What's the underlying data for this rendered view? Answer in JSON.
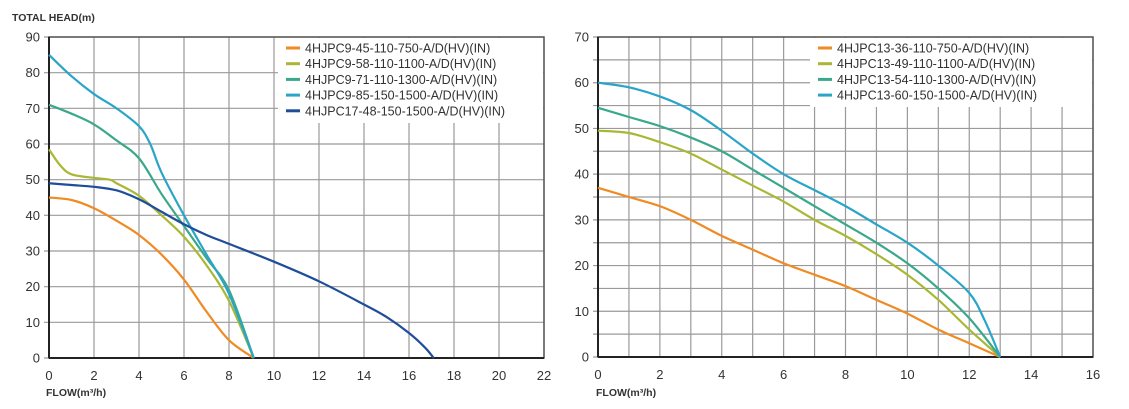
{
  "chart_data": [
    {
      "type": "line",
      "ylabel": "TOTAL HEAD(m)",
      "xlabel": "FLOW(m³/h)",
      "xlim": [
        0,
        22
      ],
      "ylim": [
        0,
        90
      ],
      "xticks": [
        0,
        2,
        4,
        6,
        8,
        10,
        12,
        14,
        16,
        18,
        20,
        22
      ],
      "yticks": [
        0,
        10,
        20,
        30,
        40,
        50,
        60,
        70,
        80,
        90
      ],
      "grid": true,
      "legend_position": "top-right",
      "series": [
        {
          "name": "4HJPC9-45-110-750-A/D(HV)(IN)",
          "color": "#f08a24",
          "x": [
            0,
            1,
            2,
            3,
            4,
            5,
            6,
            7,
            8,
            9.1
          ],
          "y": [
            45,
            44.3,
            42,
            38.5,
            34.5,
            29,
            22,
            13,
            5,
            0
          ]
        },
        {
          "name": "4HJPC9-58-110-1100-A/D(HV)(IN)",
          "color": "#a9b834",
          "x": [
            0,
            0.5,
            1,
            2,
            2.7,
            3,
            4,
            5,
            6,
            7,
            8,
            9.1
          ],
          "y": [
            58.5,
            54,
            51.5,
            50.5,
            50,
            49,
            45.5,
            40,
            34,
            26,
            16,
            0
          ]
        },
        {
          "name": "4HJPC9-71-110-1300-A/D(HV)(IN)",
          "color": "#3aa88a",
          "x": [
            0,
            1,
            2,
            3,
            4,
            5,
            6,
            7,
            8,
            9.1
          ],
          "y": [
            71,
            68.5,
            65.5,
            61,
            56,
            46,
            37,
            28,
            19,
            0
          ]
        },
        {
          "name": "4HJPC9-85-150-1500-A/D(HV)(IN)",
          "color": "#2aa5c8",
          "x": [
            0,
            1,
            2,
            3,
            4,
            4.5,
            5,
            6,
            7,
            8,
            9.1
          ],
          "y": [
            85,
            79,
            74,
            70,
            65,
            60,
            52,
            40,
            29,
            18,
            0
          ]
        },
        {
          "name": "4HJPC17-48-150-1500-A/D(HV)(IN)",
          "color": "#1f4d9a",
          "x": [
            0,
            1,
            2,
            3,
            4,
            5,
            6,
            7,
            8,
            10,
            12,
            14,
            15,
            16,
            16.7,
            17.1
          ],
          "y": [
            49,
            48.5,
            48,
            47,
            44.5,
            41,
            37.5,
            34.5,
            32,
            27,
            21.5,
            15,
            11.5,
            7,
            3,
            0
          ]
        }
      ]
    },
    {
      "type": "line",
      "xlabel": "FLOW(m³/h)",
      "xlim": [
        0,
        16
      ],
      "ylim": [
        0,
        70
      ],
      "xticks": [
        0,
        2,
        4,
        6,
        8,
        10,
        12,
        14,
        16
      ],
      "yticks": [
        0,
        10,
        20,
        30,
        40,
        50,
        60,
        70
      ],
      "grid": true,
      "legend_position": "top-right",
      "series": [
        {
          "name": "4HJPC13-36-110-750-A/D(HV)(IN)",
          "color": "#f08a24",
          "x": [
            0,
            1,
            2,
            3,
            4,
            5,
            6,
            7,
            8,
            9,
            10,
            11,
            12,
            13
          ],
          "y": [
            37,
            35,
            33,
            30,
            26.5,
            23.5,
            20.5,
            18,
            15.5,
            12.5,
            9.5,
            6,
            3,
            0
          ]
        },
        {
          "name": "4HJPC13-49-110-1100-A/D(HV)(IN)",
          "color": "#a9b834",
          "x": [
            0,
            1,
            2,
            3,
            4,
            5,
            6,
            7,
            8,
            9,
            10,
            11,
            12,
            13
          ],
          "y": [
            49.5,
            49,
            47,
            44.5,
            41,
            37.5,
            34,
            30,
            26.5,
            22.5,
            18,
            12.5,
            6,
            0
          ]
        },
        {
          "name": "4HJPC13-54-110-1300-A/D(HV)(IN)",
          "color": "#3aa88a",
          "x": [
            0,
            1,
            2,
            3,
            4,
            5,
            6,
            7,
            8,
            9,
            10,
            11,
            12,
            13
          ],
          "y": [
            54.5,
            52.5,
            50.5,
            48,
            45,
            41,
            37,
            33,
            29,
            25,
            20.5,
            15,
            8.5,
            0
          ]
        },
        {
          "name": "4HJPC13-60-150-1500-A/D(HV)(IN)",
          "color": "#2aa5c8",
          "x": [
            0,
            1,
            2,
            3,
            4,
            5,
            6,
            7,
            8,
            9,
            10,
            11,
            12,
            12.5,
            13
          ],
          "y": [
            60,
            59,
            57,
            54,
            49.5,
            44.5,
            40,
            36.5,
            33,
            29,
            25,
            20,
            14,
            8,
            0
          ]
        }
      ]
    }
  ]
}
